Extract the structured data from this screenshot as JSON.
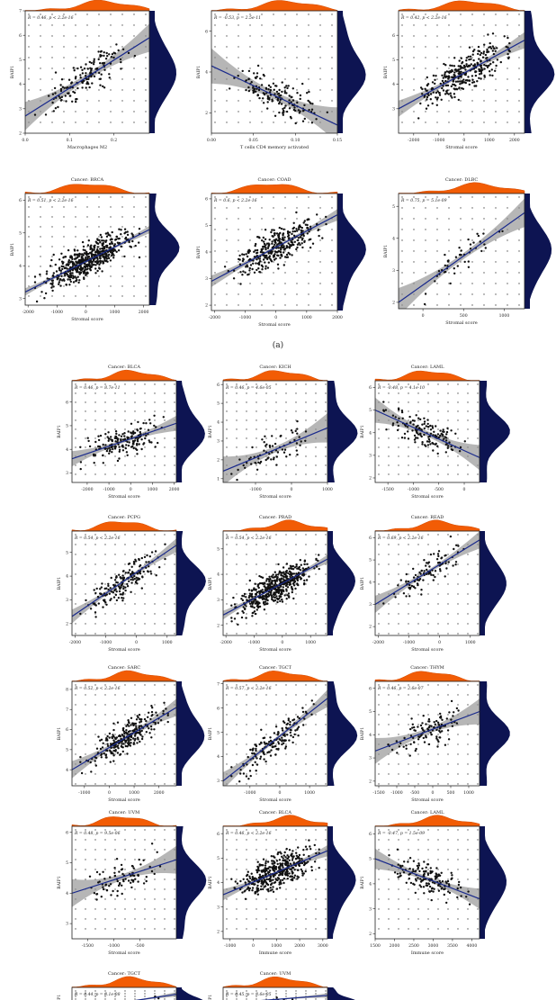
{
  "figure": {
    "section_labels": [
      "(a)"
    ],
    "colors": {
      "points": "#111111",
      "fit_line": "#1a2a8c",
      "ci_band": "#8f8f8f",
      "top_density": "#f25c05",
      "right_density": "#0d1452"
    }
  },
  "chart_data": [
    {
      "type": "scatter",
      "title": "",
      "stat": "R = 0.46, p < 2.2e-16",
      "xlabel": "Macrophages M2",
      "ylabel": "BAIP1",
      "xlim": [
        0,
        0.28
      ],
      "ylim": [
        2,
        7
      ],
      "xticks": [
        {
          "v": 0,
          "t": "0.0"
        },
        {
          "v": 0.1,
          "t": "0.1"
        },
        {
          "v": 0.2,
          "t": "0.2"
        }
      ],
      "yticks": [
        2,
        3,
        4,
        5,
        6,
        7
      ],
      "fit": [
        [
          0,
          2.7
        ],
        [
          0.28,
          5.9
        ]
      ],
      "band": 0.28,
      "n": 150,
      "seed": 11
    },
    {
      "type": "scatter",
      "title": "",
      "stat": "R = -0.53, p = 2.5e-11",
      "xlabel": "T cells CD4 memory activated",
      "ylabel": "BAIP1",
      "xlim": [
        0,
        0.15
      ],
      "ylim": [
        1,
        7
      ],
      "xticks": [
        {
          "v": 0,
          "t": "0.00"
        },
        {
          "v": 0.05,
          "t": "0.05"
        },
        {
          "v": 0.1,
          "t": "0.10"
        },
        {
          "v": 0.15,
          "t": "0.15"
        }
      ],
      "yticks": [
        2,
        4,
        6
      ],
      "fit": [
        [
          0,
          4.3
        ],
        [
          0.15,
          1.4
        ]
      ],
      "band": 0.35,
      "n": 150,
      "seed": 12
    },
    {
      "type": "scatter",
      "title": "",
      "stat": "R = 0.42, p < 2.2e-16",
      "xlabel": "Stromal score",
      "ylabel": "BAIP1",
      "xlim": [
        -2600,
        2400
      ],
      "ylim": [
        2,
        7
      ],
      "xticks": [
        {
          "v": -2000,
          "t": "-2000"
        },
        {
          "v": -1000,
          "t": "-1000"
        },
        {
          "v": 0,
          "t": "0"
        },
        {
          "v": 1000,
          "t": "1000"
        },
        {
          "v": 2000,
          "t": "2000"
        }
      ],
      "yticks": [
        3,
        4,
        5,
        6
      ],
      "fit": [
        [
          -2600,
          3.0
        ],
        [
          2400,
          5.8
        ]
      ],
      "band": 0.16,
      "n": 300,
      "seed": 13
    },
    {
      "type": "scatter",
      "title": "Cancer: BRCA",
      "stat": "R = 0.51, p < 2.2e-16",
      "xlabel": "Stromal score",
      "ylabel": "BAIP1",
      "xlim": [
        -2100,
        2200
      ],
      "ylim": [
        2.8,
        6.2
      ],
      "xticks": [
        {
          "v": -2000,
          "t": "-2000"
        },
        {
          "v": -1000,
          "t": "-1000"
        },
        {
          "v": 0,
          "t": "0"
        },
        {
          "v": 1000,
          "t": "1000"
        },
        {
          "v": 2000,
          "t": "2000"
        }
      ],
      "yticks": [
        3,
        4,
        5,
        6
      ],
      "fit": [
        [
          -2100,
          3.2
        ],
        [
          2200,
          5.1
        ]
      ],
      "band": 0.08,
      "n": 520,
      "seed": 21
    },
    {
      "type": "scatter",
      "title": "Cancer: COAD",
      "stat": "R = 0.6, p < 2.2e-16",
      "xlabel": "Stromal score",
      "ylabel": "BAIP1",
      "xlim": [
        -2100,
        2000
      ],
      "ylim": [
        1.8,
        6.2
      ],
      "xticks": [
        {
          "v": -2000,
          "t": "-2000"
        },
        {
          "v": -1000,
          "t": "-1000"
        },
        {
          "v": 0,
          "t": "0"
        },
        {
          "v": 1000,
          "t": "1000"
        },
        {
          "v": 2000,
          "t": "2000"
        }
      ],
      "yticks": [
        2,
        3,
        4,
        5,
        6
      ],
      "fit": [
        [
          -2100,
          2.9
        ],
        [
          2000,
          5.4
        ]
      ],
      "band": 0.12,
      "n": 330,
      "seed": 22
    },
    {
      "type": "scatter",
      "title": "Cancer: DLBC",
      "stat": "R = 0.75, p = 5.1e-09",
      "xlabel": "Stromal score",
      "ylabel": "BAIP1",
      "xlim": [
        -300,
        1250
      ],
      "ylim": [
        1.8,
        5.4
      ],
      "xticks": [
        {
          "v": 0,
          "t": "0"
        },
        {
          "v": 500,
          "t": "500"
        },
        {
          "v": 1000,
          "t": "1000"
        }
      ],
      "yticks": [
        2,
        3,
        4,
        5
      ],
      "fit": [
        [
          -300,
          2.0
        ],
        [
          1250,
          4.8
        ]
      ],
      "band": 0.3,
      "n": 45,
      "seed": 23
    },
    {
      "type": "scatter",
      "title": "Cancer: BLCA",
      "stat": "R = 0.46, p = 8.7e-11",
      "xlabel": "Stromal score",
      "ylabel": "BAIP1",
      "xlim": [
        -2700,
        2100
      ],
      "ylim": [
        2.6,
        6.9
      ],
      "xticks": [
        {
          "v": -2000,
          "t": "-2000"
        },
        {
          "v": -1000,
          "t": "-1000"
        },
        {
          "v": 0,
          "t": "0"
        },
        {
          "v": 1000,
          "t": "1000"
        },
        {
          "v": 2000,
          "t": "2000"
        }
      ],
      "yticks": [
        3,
        4,
        5,
        6
      ],
      "fit": [
        [
          -2700,
          3.6
        ],
        [
          2100,
          5.1
        ]
      ],
      "band": 0.18,
      "n": 170,
      "seed": 31
    },
    {
      "type": "scatter",
      "title": "Cancer: KICH",
      "stat": "R = 0.46, p = 4.6e-05",
      "xlabel": "Stromal score",
      "ylabel": "BAIP1",
      "xlim": [
        -1900,
        1000
      ],
      "ylim": [
        0.8,
        6.2
      ],
      "xticks": [
        {
          "v": -1000,
          "t": "-1000"
        },
        {
          "v": 0,
          "t": "0"
        },
        {
          "v": 1000,
          "t": "1000"
        }
      ],
      "yticks": [
        1,
        2,
        3,
        4,
        5,
        6
      ],
      "fit": [
        [
          -1900,
          1.4
        ],
        [
          1000,
          3.7
        ]
      ],
      "band": 0.35,
      "n": 70,
      "seed": 32
    },
    {
      "type": "scatter",
      "title": "Cancer: LAML",
      "stat": "R = -0.48, p = 4.1e-10",
      "xlabel": "Stromal score",
      "ylabel": "BAIP1",
      "xlim": [
        -1750,
        300
      ],
      "ylim": [
        1.8,
        6.3
      ],
      "xticks": [
        {
          "v": -1500,
          "t": "-1500"
        },
        {
          "v": -1000,
          "t": "-1000"
        },
        {
          "v": -500,
          "t": "-500"
        },
        {
          "v": 0,
          "t": "0"
        }
      ],
      "yticks": [
        2,
        3,
        4,
        5,
        6
      ],
      "fit": [
        [
          -1750,
          5.0
        ],
        [
          300,
          2.9
        ]
      ],
      "band": 0.3,
      "n": 140,
      "seed": 33
    },
    {
      "type": "scatter",
      "title": "Cancer: PCPG",
      "stat": "R = 0.54, p < 2.2e-16",
      "xlabel": "Stromal score",
      "ylabel": "BAIP1",
      "xlim": [
        -2100,
        1300
      ],
      "ylim": [
        1.5,
        5.9
      ],
      "xticks": [
        {
          "v": -2000,
          "t": "-2000"
        },
        {
          "v": -1000,
          "t": "-1000"
        },
        {
          "v": 0,
          "t": "0"
        },
        {
          "v": 1000,
          "t": "1000"
        }
      ],
      "yticks": [
        2,
        3,
        4,
        5
      ],
      "fit": [
        [
          -2100,
          2.3
        ],
        [
          1300,
          5.3
        ]
      ],
      "band": 0.16,
      "n": 170,
      "seed": 34
    },
    {
      "type": "scatter",
      "title": "Cancer: PRAD",
      "stat": "R = 0.54, p < 2.2e-16",
      "xlabel": "Stromal score",
      "ylabel": "BAIP1",
      "xlim": [
        -2100,
        1600
      ],
      "ylim": [
        1.6,
        5.7
      ],
      "xticks": [
        {
          "v": -2000,
          "t": "-2000"
        },
        {
          "v": -1000,
          "t": "-1000"
        },
        {
          "v": 0,
          "t": "0"
        },
        {
          "v": 1000,
          "t": "1000"
        }
      ],
      "yticks": [
        2,
        3,
        4,
        5
      ],
      "fit": [
        [
          -2100,
          2.4
        ],
        [
          1600,
          4.6
        ]
      ],
      "band": 0.1,
      "n": 480,
      "seed": 35
    },
    {
      "type": "scatter",
      "title": "Cancer: READ",
      "stat": "R = 0.69, p < 2.2e-16",
      "xlabel": "Stromal score",
      "ylabel": "BAIP1",
      "xlim": [
        -2100,
        1300
      ],
      "ylim": [
        1.6,
        6.3
      ],
      "xticks": [
        {
          "v": -2000,
          "t": "-2000"
        },
        {
          "v": -1000,
          "t": "-1000"
        },
        {
          "v": 0,
          "t": "0"
        },
        {
          "v": 1000,
          "t": "1000"
        }
      ],
      "yticks": [
        2,
        3,
        4,
        5,
        6
      ],
      "fit": [
        [
          -2100,
          3.0
        ],
        [
          1300,
          5.9
        ]
      ],
      "band": 0.2,
      "n": 100,
      "seed": 36
    },
    {
      "type": "scatter",
      "title": "Cancer: SARC",
      "stat": "R = 0.52, p < 2.2e-16",
      "xlabel": "Stromal score",
      "ylabel": "BAIP1",
      "xlim": [
        -1500,
        2700
      ],
      "ylim": [
        3.2,
        8.4
      ],
      "xticks": [
        {
          "v": -1000,
          "t": "-1000"
        },
        {
          "v": 0,
          "t": "0"
        },
        {
          "v": 1000,
          "t": "1000"
        },
        {
          "v": 2000,
          "t": "2000"
        }
      ],
      "yticks": [
        4,
        5,
        6,
        7,
        8
      ],
      "fit": [
        [
          -1500,
          4.0
        ],
        [
          2700,
          7.1
        ]
      ],
      "band": 0.2,
      "n": 260,
      "seed": 37
    },
    {
      "type": "scatter",
      "title": "Cancer: TGCT",
      "stat": "R = 0.57, p < 2.2e-16",
      "xlabel": "Stromal score",
      "ylabel": "BAIP1",
      "xlim": [
        -1900,
        1600
      ],
      "ylim": [
        2.8,
        7.1
      ],
      "xticks": [
        {
          "v": -1000,
          "t": "-1000"
        },
        {
          "v": 0,
          "t": "0"
        },
        {
          "v": 1000,
          "t": "1000"
        }
      ],
      "yticks": [
        3,
        4,
        5,
        6,
        7
      ],
      "fit": [
        [
          -1900,
          3.0
        ],
        [
          1600,
          6.4
        ]
      ],
      "band": 0.2,
      "n": 150,
      "seed": 38
    },
    {
      "type": "scatter",
      "title": "Cancer: THYM",
      "stat": "R = 0.46, p = 2.6e-07",
      "xlabel": "Stromal score",
      "ylabel": "BAIP1",
      "xlim": [
        -1600,
        1300
      ],
      "ylim": [
        1.8,
        6.3
      ],
      "xticks": [
        {
          "v": -1500,
          "t": "-1500"
        },
        {
          "v": -1000,
          "t": "-1000"
        },
        {
          "v": -500,
          "t": "-500"
        },
        {
          "v": 0,
          "t": "0"
        },
        {
          "v": 500,
          "t": "500"
        },
        {
          "v": 1000,
          "t": "1000"
        }
      ],
      "yticks": [
        2,
        3,
        4,
        5,
        6
      ],
      "fit": [
        [
          -1600,
          3.3
        ],
        [
          1300,
          5.0
        ]
      ],
      "band": 0.3,
      "n": 110,
      "seed": 39
    },
    {
      "type": "scatter",
      "title": "Cancer: UVM",
      "stat": "R = 0.48, p = 9.5e-06",
      "xlabel": "Stromal score",
      "ylabel": "BAIP1",
      "xlim": [
        -1800,
        200
      ],
      "ylim": [
        2.5,
        6.2
      ],
      "xticks": [
        {
          "v": -1500,
          "t": "-1500"
        },
        {
          "v": -1000,
          "t": "-1000"
        },
        {
          "v": -500,
          "t": "-500"
        }
      ],
      "yticks": [
        3,
        4,
        5,
        6
      ],
      "fit": [
        [
          -1800,
          4.0
        ],
        [
          200,
          5.1
        ]
      ],
      "band": 0.3,
      "n": 80,
      "seed": 40
    },
    {
      "type": "scatter",
      "title": "Cancer: BLCA",
      "stat": "R = 0.46, p < 2.2e-16",
      "xlabel": "Immune score",
      "ylabel": "BAIP1",
      "xlim": [
        -1300,
        3200
      ],
      "ylim": [
        1.7,
        6.3
      ],
      "xticks": [
        {
          "v": -1000,
          "t": "-1000"
        },
        {
          "v": 0,
          "t": "0"
        },
        {
          "v": 1000,
          "t": "1000"
        },
        {
          "v": 2000,
          "t": "2000"
        },
        {
          "v": 3000,
          "t": "3000"
        }
      ],
      "yticks": [
        2,
        3,
        4,
        5,
        6
      ],
      "fit": [
        [
          -1300,
          3.5
        ],
        [
          3200,
          5.3
        ]
      ],
      "band": 0.12,
      "n": 400,
      "seed": 41
    },
    {
      "type": "scatter",
      "title": "Cancer: LAML",
      "stat": "R = -0.47, p = 1.5e-09",
      "xlabel": "Immune score",
      "ylabel": "BAIP1",
      "xlim": [
        1500,
        4200
      ],
      "ylim": [
        1.8,
        6.3
      ],
      "xticks": [
        {
          "v": 1500,
          "t": "1500"
        },
        {
          "v": 2000,
          "t": "2000"
        },
        {
          "v": 2500,
          "t": "2500"
        },
        {
          "v": 3000,
          "t": "3000"
        },
        {
          "v": 3500,
          "t": "3500"
        },
        {
          "v": 4000,
          "t": "4000"
        }
      ],
      "yticks": [
        2,
        3,
        4,
        5,
        6
      ],
      "fit": [
        [
          1500,
          5.0
        ],
        [
          4200,
          3.4
        ]
      ],
      "band": 0.22,
      "n": 150,
      "seed": 42
    },
    {
      "type": "scatter",
      "title": "Cancer: TGCT",
      "stat": "R = 0.44, p = 8.1e-08",
      "xlabel": "",
      "ylabel": "BAIP1",
      "xlim": [
        -1900,
        1600
      ],
      "ylim": [
        2.8,
        7.1
      ],
      "xticks": [],
      "yticks": [],
      "fit": [
        [
          -1900,
          3.5
        ],
        [
          1600,
          6.0
        ]
      ],
      "band": 0.2,
      "n": 6,
      "seed": 43
    },
    {
      "type": "scatter",
      "title": "Cancer: UVM",
      "stat": "R = 0.45, p = 3.6e-05",
      "xlabel": "",
      "ylabel": "BAIP1",
      "xlim": [
        -1800,
        200
      ],
      "ylim": [
        2.5,
        6.2
      ],
      "xticks": [],
      "yticks": [],
      "fit": [
        [
          -1800,
          4.0
        ],
        [
          200,
          5.1
        ]
      ],
      "band": 0.2,
      "n": 6,
      "seed": 44
    }
  ]
}
